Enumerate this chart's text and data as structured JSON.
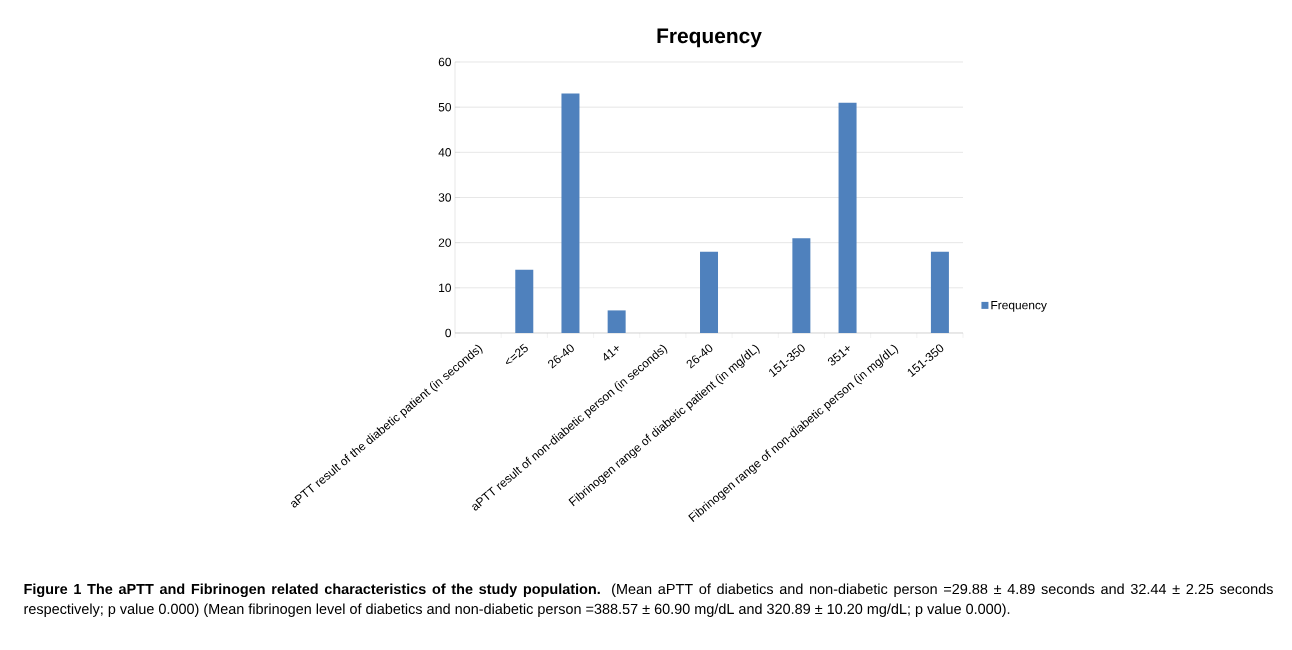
{
  "chart_data": {
    "type": "bar",
    "title": "Frequency",
    "categories": [
      "aPTT result of the diabetic patient (in seconds)",
      "<=25",
      "26-40",
      "41+",
      "aPTT result of non-diabetic person (in seconds)",
      "26-40",
      "Fibrinogen range of diabetic patient (in mg/dL)",
      "151-350",
      "351+",
      "Fibrinogen range of non-diabetic person (in mg/dL)",
      "151-350"
    ],
    "series": [
      {
        "name": "Frequency",
        "color": "#4f81bd",
        "values": [
          null,
          14,
          53,
          5,
          null,
          18,
          null,
          21,
          51,
          null,
          18
        ]
      }
    ],
    "ylim": [
      0,
      60
    ],
    "yticks": [
      0,
      10,
      20,
      30,
      40,
      50,
      60
    ],
    "grid": "y",
    "legend": "right",
    "annotations": [
      "**Figure 1 The aPTT and Fibrinogen related characteristics of the study population.** (Mean aPTT of diabetics and non-diabetic person =29.88 ± 4.89 seconds and 32.44 ± 2.25 seconds respectively; p value 0.000) (Mean fibrinogen level of diabetics and non-diabetic person =388.57 ± 60.90 mg/dL and 320.89 ± 10.20 mg/dL; p value 0.000)."
    ]
  }
}
